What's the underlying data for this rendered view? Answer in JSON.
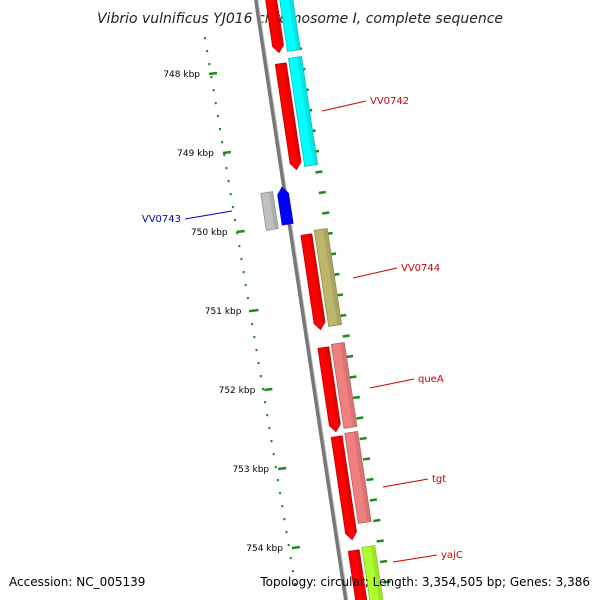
{
  "title": "Vibrio vulnificus YJ016 chromosome I, complete sequence",
  "footer": {
    "accession": "Accession: NC_005139",
    "summary": "Topology: circular; Length: 3,354,505 bp; Genes: 3,386"
  },
  "ruler": {
    "ticks": [
      "748 kbp",
      "749 kbp",
      "750 kbp",
      "751 kbp",
      "752 kbp",
      "753 kbp",
      "754 kbp"
    ]
  },
  "colors": {
    "backbone": "#777777",
    "cds_strand": "#ff0000",
    "tick": "#228822",
    "forward_label": "#cc0000",
    "reverse_label": "#0000cc"
  },
  "genes": [
    {
      "label": "VV0742",
      "strand": "forward",
      "feature_color": "#00ffff"
    },
    {
      "label": "VV0743",
      "strand": "reverse",
      "feature_color": "#0000ff"
    },
    {
      "label": "VV0744",
      "strand": "forward",
      "feature_color": "#bdb76b"
    },
    {
      "label": "queA",
      "strand": "forward",
      "feature_color": "#f08080"
    },
    {
      "label": "tgt",
      "strand": "forward",
      "feature_color": "#f08080"
    },
    {
      "label": "yajC",
      "strand": "forward",
      "feature_color": "#adff2f"
    }
  ]
}
